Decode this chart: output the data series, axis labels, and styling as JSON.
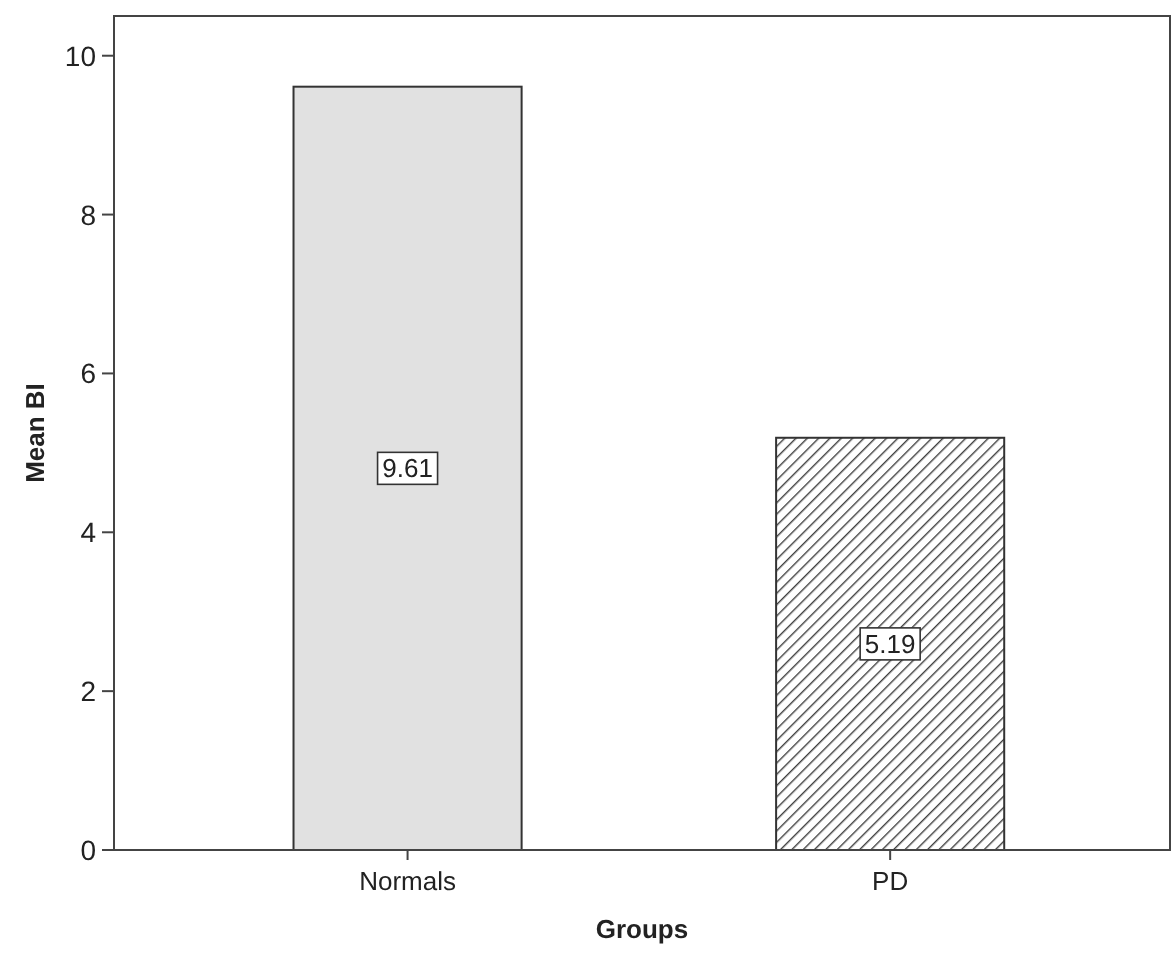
{
  "chart_data": {
    "type": "bar",
    "xlabel": "Groups",
    "ylabel": "Mean BI",
    "categories": [
      "Normals",
      "PD"
    ],
    "values": [
      9.61,
      5.19
    ],
    "colors": [
      "#e1e1e1",
      "#404040"
    ],
    "ylim": [
      0,
      10.5
    ],
    "yticks": [
      0,
      2,
      4,
      6,
      8,
      10
    ],
    "data_labels": true,
    "grid": false
  }
}
